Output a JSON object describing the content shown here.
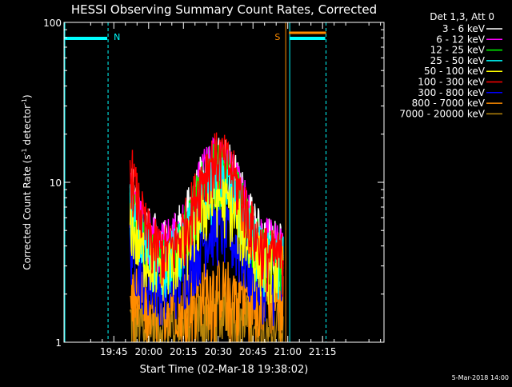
{
  "chart_data": {
    "type": "line",
    "title": "HESSI Observing Summary Count Rates, Corrected",
    "xlabel": "Start Time (02-Mar-18 19:38:02)",
    "ylabel_prefix": "Corrected Count Rate (s",
    "ylabel_sup1": "-1",
    "ylabel_mid": " detector",
    "ylabel_sup2": "-1",
    "ylabel_suffix": ")",
    "ylim": [
      1,
      100
    ],
    "yscale": "log",
    "xlim_minutes": [
      -21.5,
      116.5
    ],
    "x_ticks": [
      {
        "label": "19:45",
        "min": 0
      },
      {
        "label": "20:00",
        "min": 15
      },
      {
        "label": "20:15",
        "min": 30
      },
      {
        "label": "20:30",
        "min": 45
      },
      {
        "label": "20:45",
        "min": 60
      },
      {
        "label": "21:00",
        "min": 75
      },
      {
        "label": "21:15",
        "min": 90
      }
    ],
    "y_ticks": [
      {
        "label": "1",
        "value": 1
      },
      {
        "label": "10",
        "value": 10
      },
      {
        "label": "100",
        "value": 100
      }
    ],
    "legend_placement": "right",
    "legend_header": "Det 1,3, Att 0",
    "series": [
      {
        "name": "3 - 6 keV",
        "color": "#ffffff"
      },
      {
        "name": "6 - 12 keV",
        "color": "#ff00ff"
      },
      {
        "name": "12 - 25 keV",
        "color": "#00ff00"
      },
      {
        "name": "25 - 50 keV",
        "color": "#00ffff"
      },
      {
        "name": "50 - 100 keV",
        "color": "#ffff00"
      },
      {
        "name": "100 - 300 keV",
        "color": "#ff0000"
      },
      {
        "name": "300 - 800 keV",
        "color": "#0000ff"
      },
      {
        "name": "800 - 7000 keV",
        "color": "#ff8c00"
      },
      {
        "name": "7000 - 20000 keV",
        "color": "#b8860b"
      }
    ],
    "annotations": [
      {
        "label": "N",
        "color": "#00ffff",
        "x_min": -2.5
      },
      {
        "label": "S",
        "color": "#ff8c00",
        "x_min": 73.5
      }
    ],
    "night_periods": [
      {
        "start_min": -21.5,
        "end_min": -2.5
      },
      {
        "start_min": 75.5,
        "end_min": 91.5
      }
    ],
    "saa_period": {
      "start_min": 75.5,
      "end_min": 91.5
    },
    "footer": "5-Mar-2018 14:00"
  }
}
